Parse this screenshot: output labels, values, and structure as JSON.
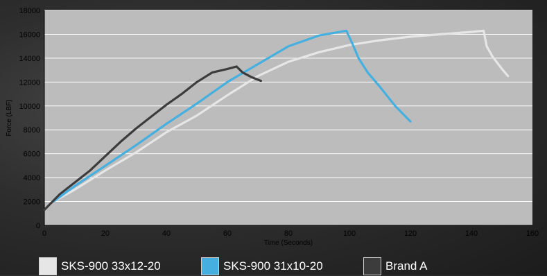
{
  "chart_data": {
    "type": "line",
    "xlabel": "Time (Seconds)",
    "ylabel": "Force (LBF)",
    "xlim": [
      0,
      160
    ],
    "ylim": [
      0,
      18000
    ],
    "xticks": [
      0,
      20,
      40,
      60,
      80,
      100,
      120,
      140,
      160
    ],
    "yticks": [
      0,
      2000,
      4000,
      6000,
      8000,
      10000,
      12000,
      14000,
      16000,
      18000
    ],
    "grid": true,
    "legend_position": "bottom",
    "plot_background": "#bcbcbc",
    "gridline_color": "#ffffff",
    "series": [
      {
        "name": "SKS-900 33x12-20",
        "color": "#e6e6e6",
        "x": [
          3,
          10,
          20,
          30,
          40,
          50,
          60,
          70,
          80,
          90,
          100,
          110,
          120,
          130,
          140,
          144,
          145,
          147,
          150,
          152
        ],
        "y": [
          2000,
          3000,
          4600,
          6100,
          7800,
          9200,
          10900,
          12500,
          13700,
          14500,
          15100,
          15500,
          15800,
          16000,
          16200,
          16300,
          15000,
          14100,
          13100,
          12500
        ]
      },
      {
        "name": "SKS-900 31x10-20",
        "color": "#45b0e0",
        "x": [
          3,
          10,
          20,
          30,
          40,
          50,
          60,
          70,
          80,
          90,
          99,
          101,
          103,
          106,
          110,
          115,
          120
        ],
        "y": [
          2000,
          3300,
          5000,
          6700,
          8500,
          10200,
          12000,
          13500,
          15000,
          15900,
          16300,
          15200,
          14000,
          12800,
          11600,
          10000,
          8700
        ]
      },
      {
        "name": "Brand A",
        "color": "#3c3c3c",
        "x": [
          0,
          5,
          10,
          15,
          20,
          25,
          30,
          35,
          40,
          45,
          50,
          55,
          60,
          63,
          65,
          68,
          71
        ],
        "y": [
          1300,
          2600,
          3600,
          4600,
          5800,
          7000,
          8100,
          9100,
          10100,
          11000,
          12000,
          12800,
          13100,
          13300,
          12800,
          12400,
          12100
        ]
      }
    ]
  }
}
